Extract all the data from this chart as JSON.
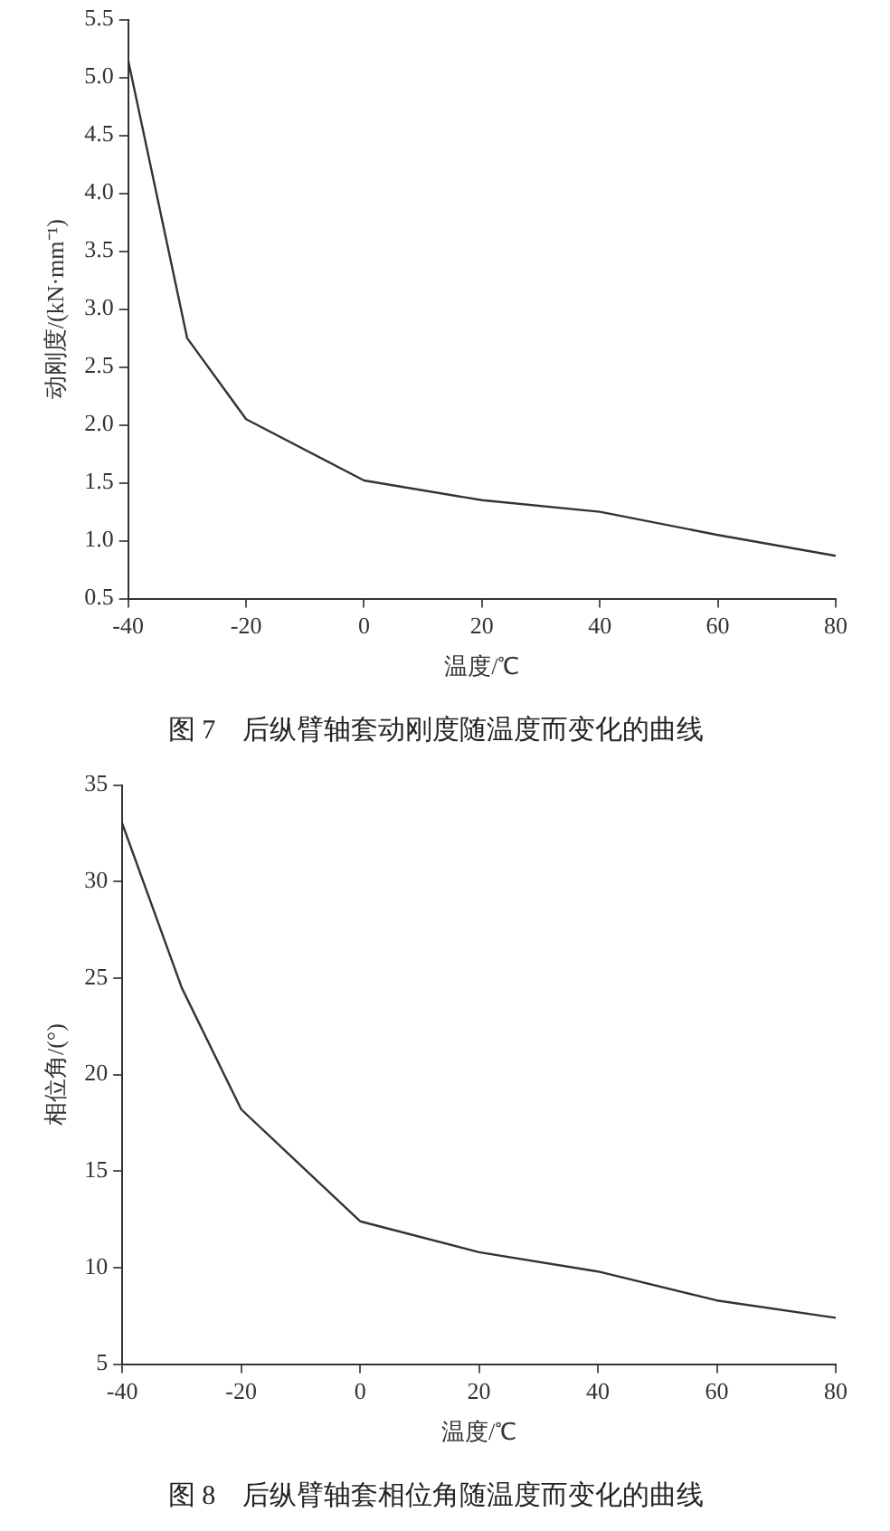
{
  "chart_data": [
    {
      "type": "line",
      "title": "图 7　后纵臂轴套动刚度随温度而变化的曲线",
      "xlabel": "温度/℃",
      "ylabel": "动刚度/(kN·mm⁻¹)",
      "x": [
        -40,
        -30,
        -20,
        0,
        20,
        40,
        60,
        80
      ],
      "series": [
        {
          "color": "#333333",
          "values": [
            5.15,
            2.75,
            2.05,
            1.52,
            1.35,
            1.25,
            1.05,
            0.87
          ]
        }
      ],
      "xlim": [
        -40,
        80
      ],
      "xticks": [
        -40,
        -20,
        0,
        20,
        40,
        60,
        80
      ],
      "ylim": [
        0.5,
        5.5
      ],
      "yticks": [
        {
          "value": 0.5,
          "label": "0.5"
        },
        {
          "value": 1,
          "label": "1.0"
        },
        {
          "value": 1.5,
          "label": "1.5"
        },
        {
          "value": 2,
          "label": "2.0"
        },
        {
          "value": 2.5,
          "label": "2.5"
        },
        {
          "value": 3,
          "label": "3.0"
        },
        {
          "value": 3.5,
          "label": "3.5"
        },
        {
          "value": 4,
          "label": "4.0"
        },
        {
          "value": 4.5,
          "label": "4.5"
        },
        {
          "value": 5,
          "label": "5.0"
        },
        {
          "value": 5.5,
          "label": "5.5"
        }
      ],
      "grid": false,
      "legend": false,
      "marker": "none",
      "line_style": "solid"
    },
    {
      "type": "line",
      "title": "图 8　后纵臂轴套相位角随温度而变化的曲线",
      "xlabel": "温度/℃",
      "ylabel": "相位角/(°)",
      "x": [
        -40,
        -30,
        -20,
        0,
        20,
        40,
        60,
        80
      ],
      "series": [
        {
          "color": "#333333",
          "values": [
            33,
            24.5,
            18.2,
            12.4,
            10.8,
            9.8,
            8.3,
            7.4
          ]
        }
      ],
      "xlim": [
        -40,
        80
      ],
      "xticks": [
        -40,
        -20,
        0,
        20,
        40,
        60,
        80
      ],
      "ylim": [
        5,
        35
      ],
      "yticks": [
        5,
        10,
        15,
        20,
        25,
        30,
        35
      ],
      "grid": false,
      "legend": false,
      "marker": "none",
      "line_style": "solid"
    }
  ]
}
